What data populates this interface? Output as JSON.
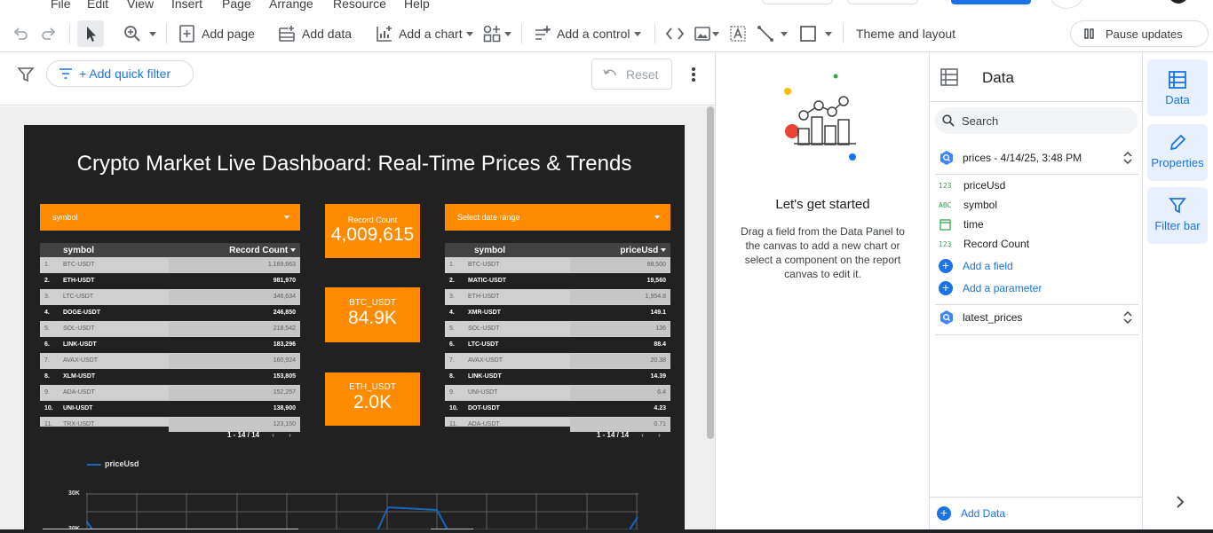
{
  "menu": [
    "File",
    "Edit",
    "View",
    "Insert",
    "Page",
    "Arrange",
    "Resource",
    "Help"
  ],
  "toolbar": {
    "add_page": "Add page",
    "add_data": "Add data",
    "add_chart": "Add a chart",
    "add_control": "Add a control",
    "theme_layout": "Theme and layout",
    "pause_updates": "Pause updates",
    "icons": [
      "undo-icon",
      "redo-icon",
      "select-cursor-icon",
      "zoom-icon",
      "add-page-icon",
      "add-data-icon",
      "add-chart-icon",
      "community-viz-icon",
      "add-control-icon",
      "embed-code-icon",
      "image-icon",
      "text-icon",
      "line-icon",
      "shape-icon",
      "pause-icon"
    ]
  },
  "filterbar": {
    "add_quick_filter": "+ Add quick filter",
    "reset": "Reset"
  },
  "report": {
    "title": "Crypto Market Live Dashboard: Real-Time Prices & Trends",
    "left_control": "symbol",
    "right_control": "Select date range",
    "scorecards": [
      {
        "label": "Record Count",
        "value": "4,009,615"
      },
      {
        "label": "BTC_USDT",
        "value": "84.9K"
      },
      {
        "label": "ETH_USDT",
        "value": "2.0K"
      }
    ],
    "left_table": {
      "col1": "symbol",
      "col2": "Record Count",
      "rows": [
        {
          "n": "1.",
          "sym": "BTC-USDT",
          "val": "1,169,663"
        },
        {
          "n": "2.",
          "sym": "ETH-USDT",
          "val": "981,970"
        },
        {
          "n": "3.",
          "sym": "LTC-USDT",
          "val": "346,634"
        },
        {
          "n": "4.",
          "sym": "DOGE-USDT",
          "val": "246,850"
        },
        {
          "n": "5.",
          "sym": "SOL-USDT",
          "val": "218,542"
        },
        {
          "n": "6.",
          "sym": "LINK-USDT",
          "val": "183,296"
        },
        {
          "n": "7.",
          "sym": "AVAX-USDT",
          "val": "160,924"
        },
        {
          "n": "8.",
          "sym": "XLM-USDT",
          "val": "153,805"
        },
        {
          "n": "9.",
          "sym": "ADA-USDT",
          "val": "152,257"
        },
        {
          "n": "10.",
          "sym": "UNI-USDT",
          "val": "138,900"
        },
        {
          "n": "11.",
          "sym": "TRX-USDT",
          "val": "123,150"
        }
      ],
      "pager": "1 - 14 / 14"
    },
    "right_table": {
      "col1": "symbol",
      "col2": "priceUsd",
      "rows": [
        {
          "n": "1.",
          "sym": "BTC-USDT",
          "val": "88,500"
        },
        {
          "n": "2.",
          "sym": "MATIC-USDT",
          "val": "19,560"
        },
        {
          "n": "3.",
          "sym": "ETH-USDT",
          "val": "1,954.8"
        },
        {
          "n": "4.",
          "sym": "XMR-USDT",
          "val": "149.1"
        },
        {
          "n": "5.",
          "sym": "SOL-USDT",
          "val": "136"
        },
        {
          "n": "6.",
          "sym": "LTC-USDT",
          "val": "88.4"
        },
        {
          "n": "7.",
          "sym": "AVAX-USDT",
          "val": "20.38"
        },
        {
          "n": "8.",
          "sym": "LINK-USDT",
          "val": "14.39"
        },
        {
          "n": "9.",
          "sym": "UNI-USDT",
          "val": "6.4"
        },
        {
          "n": "10.",
          "sym": "DOT-USDT",
          "val": "4.23"
        },
        {
          "n": "11.",
          "sym": "ADA-USDT",
          "val": "0.71"
        }
      ],
      "pager": "1 - 14 / 14"
    },
    "line_chart": {
      "legend": "priceUsd",
      "y_ticks": [
        "30K",
        "20K"
      ]
    }
  },
  "getting_started": {
    "title": "Let's get started",
    "description": "Drag a field from the Data Panel to the canvas to add a new chart or select a component on the report canvas to edit it."
  },
  "data_panel": {
    "title": "Data",
    "search_placeholder": "Search",
    "datasource_1": "prices - 4/14/25, 3:48 PM",
    "fields": [
      {
        "type": "123",
        "name": "priceUsd"
      },
      {
        "type": "ABC",
        "name": "symbol"
      },
      {
        "type": "date",
        "name": "time"
      },
      {
        "type": "123",
        "name": "Record Count"
      }
    ],
    "add_field": "Add a field",
    "add_parameter": "Add a parameter",
    "datasource_2": "latest_prices",
    "add_data": "Add Data"
  },
  "rail": {
    "data": "Data",
    "properties": "Properties",
    "filter_bar": "Filter bar"
  },
  "colors": {
    "accent": "#1a73e8",
    "report_bg": "#212121",
    "orange": "#ff8c00",
    "line": "#1565c0"
  }
}
